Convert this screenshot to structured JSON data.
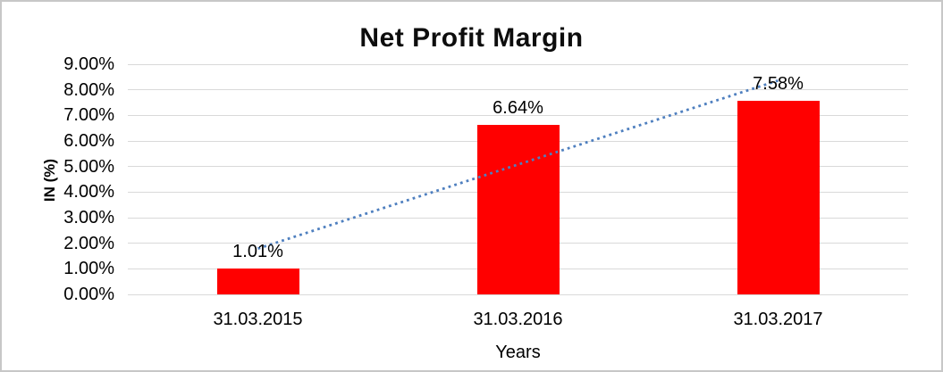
{
  "chart_data": {
    "type": "bar",
    "title": "Net Profit Margin",
    "xlabel": "Years",
    "ylabel": "IN (%)",
    "categories": [
      "31.03.2015",
      "31.03.2016",
      "31.03.2017"
    ],
    "values": [
      1.01,
      6.64,
      7.58
    ],
    "data_labels": [
      "1.01%",
      "6.64%",
      "7.58%"
    ],
    "y_ticks": [
      "9.00%",
      "8.00%",
      "7.00%",
      "6.00%",
      "5.00%",
      "4.00%",
      "3.00%",
      "2.00%",
      "1.00%",
      "0.00%"
    ],
    "ylim": [
      0,
      9
    ],
    "y_step": 1,
    "grid": true,
    "legend_position": "none",
    "bar_color": "#ff0000",
    "gridline_color": "#d9d9d9",
    "trendline": {
      "type": "linear",
      "style": "dotted",
      "color": "#4e7fbf"
    }
  }
}
